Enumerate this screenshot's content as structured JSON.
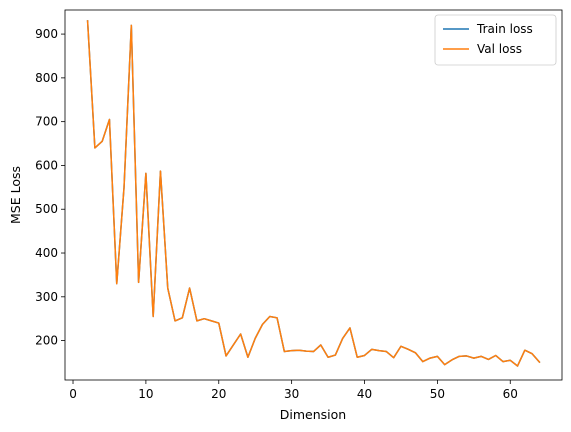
{
  "chart_data": {
    "type": "line",
    "xlabel": "Dimension",
    "ylabel": "MSE Loss",
    "xlim": [
      -1.1,
      67.1
    ],
    "ylim": [
      110,
      955
    ],
    "xticks": [
      0,
      10,
      20,
      30,
      40,
      50,
      60
    ],
    "yticks": [
      200,
      300,
      400,
      500,
      600,
      700,
      800,
      900
    ],
    "xtick_labels": [
      "0",
      "10",
      "20",
      "30",
      "40",
      "50",
      "60"
    ],
    "ytick_labels": [
      "200",
      "300",
      "400",
      "500",
      "600",
      "700",
      "800",
      "900"
    ],
    "legend_position": "top-right",
    "grid": false,
    "x": [
      2,
      3,
      4,
      5,
      6,
      7,
      8,
      9,
      10,
      11,
      12,
      13,
      14,
      15,
      16,
      17,
      18,
      19,
      20,
      21,
      22,
      23,
      24,
      25,
      26,
      27,
      28,
      29,
      30,
      31,
      32,
      33,
      34,
      35,
      36,
      37,
      38,
      39,
      40,
      41,
      42,
      43,
      44,
      45,
      46,
      47,
      48,
      49,
      50,
      51,
      52,
      53,
      54,
      55,
      56,
      57,
      58,
      59,
      60,
      61,
      62,
      63,
      64
    ],
    "series": [
      {
        "name": "Train loss",
        "color": "#1f77b4",
        "values": [
          930,
          640,
          655,
          705,
          330,
          550,
          920,
          333,
          582,
          255,
          587,
          320,
          245,
          252,
          320,
          245,
          250,
          245,
          240,
          165,
          190,
          215,
          162,
          205,
          237,
          255,
          252,
          175,
          177,
          178,
          176,
          175,
          190,
          162,
          167,
          205,
          229,
          162,
          166,
          180,
          177,
          175,
          161,
          187,
          180,
          172,
          152,
          160,
          164,
          145,
          156,
          164,
          165,
          160,
          164,
          157,
          166,
          152,
          155,
          142,
          178,
          170,
          151
        ]
      },
      {
        "name": "Val loss",
        "color": "#ff7f0e",
        "values": [
          930,
          640,
          655,
          705,
          330,
          550,
          920,
          333,
          582,
          255,
          587,
          320,
          245,
          252,
          320,
          245,
          250,
          245,
          240,
          165,
          190,
          215,
          162,
          205,
          237,
          255,
          252,
          175,
          177,
          178,
          176,
          175,
          190,
          162,
          167,
          205,
          229,
          162,
          166,
          180,
          177,
          175,
          161,
          187,
          180,
          172,
          152,
          160,
          164,
          145,
          156,
          164,
          165,
          160,
          164,
          157,
          166,
          152,
          155,
          142,
          178,
          170,
          151
        ]
      }
    ]
  }
}
